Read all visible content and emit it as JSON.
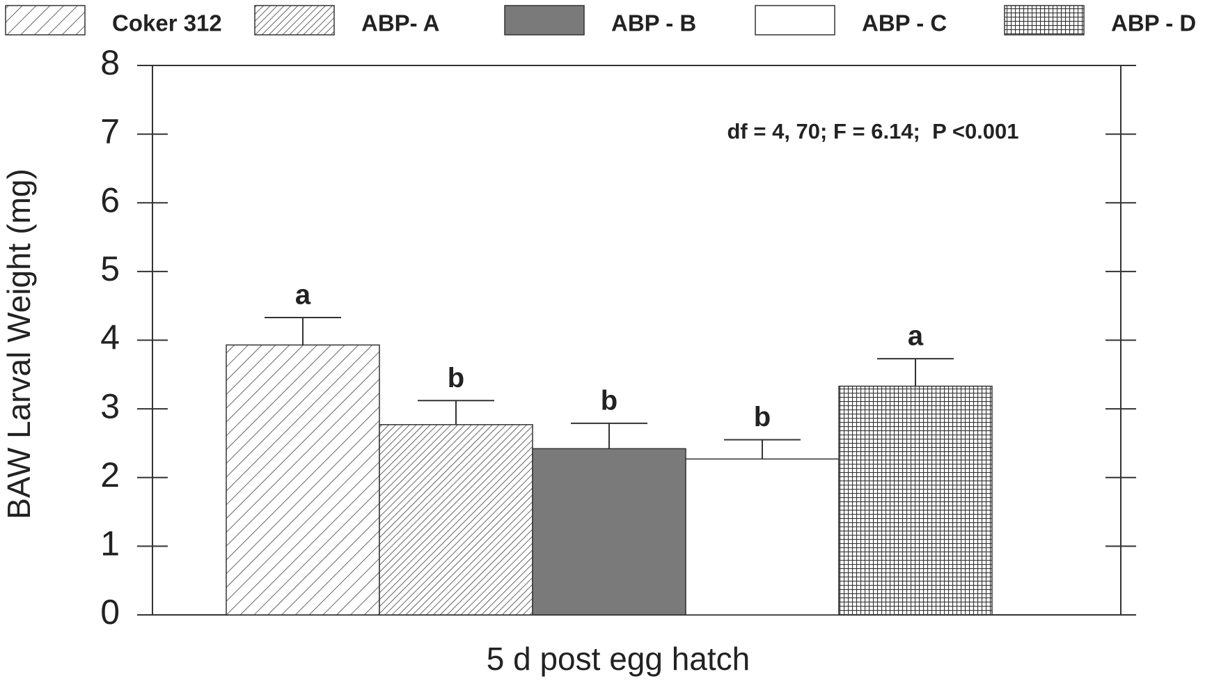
{
  "chart_data": {
    "type": "bar",
    "x_label": "5 d post egg hatch",
    "y_label": "BAW Larval Weight (mg)",
    "annotation": "df = 4, 70; F = 6.14;  P <0.001",
    "categories": [
      "5 d post egg hatch"
    ],
    "series": [
      {
        "name": "Coker 312",
        "color": "#ffffff",
        "pattern": "hatch-wide",
        "values": [
          3.93
        ],
        "errors": [
          0.4
        ],
        "letters": [
          "a"
        ]
      },
      {
        "name": "ABP- A",
        "color": "#ffffff",
        "pattern": "hatch-dense",
        "values": [
          2.77
        ],
        "errors": [
          0.35
        ],
        "letters": [
          "b"
        ]
      },
      {
        "name": "ABP - B",
        "color": "#7a7a7a",
        "pattern": "solid",
        "values": [
          2.42
        ],
        "errors": [
          0.37
        ],
        "letters": [
          "b"
        ]
      },
      {
        "name": "ABP - C",
        "color": "#ffffff",
        "pattern": "solid",
        "values": [
          2.27
        ],
        "errors": [
          0.28
        ],
        "letters": [
          "b"
        ]
      },
      {
        "name": "ABP - D",
        "color": "#ffffff",
        "pattern": "grid",
        "values": [
          3.33
        ],
        "errors": [
          0.4
        ],
        "letters": [
          "a"
        ]
      }
    ],
    "ylim": [
      0,
      8
    ],
    "yticks": [
      0,
      1,
      2,
      3,
      4,
      5,
      6,
      7,
      8
    ],
    "legend": "top"
  }
}
